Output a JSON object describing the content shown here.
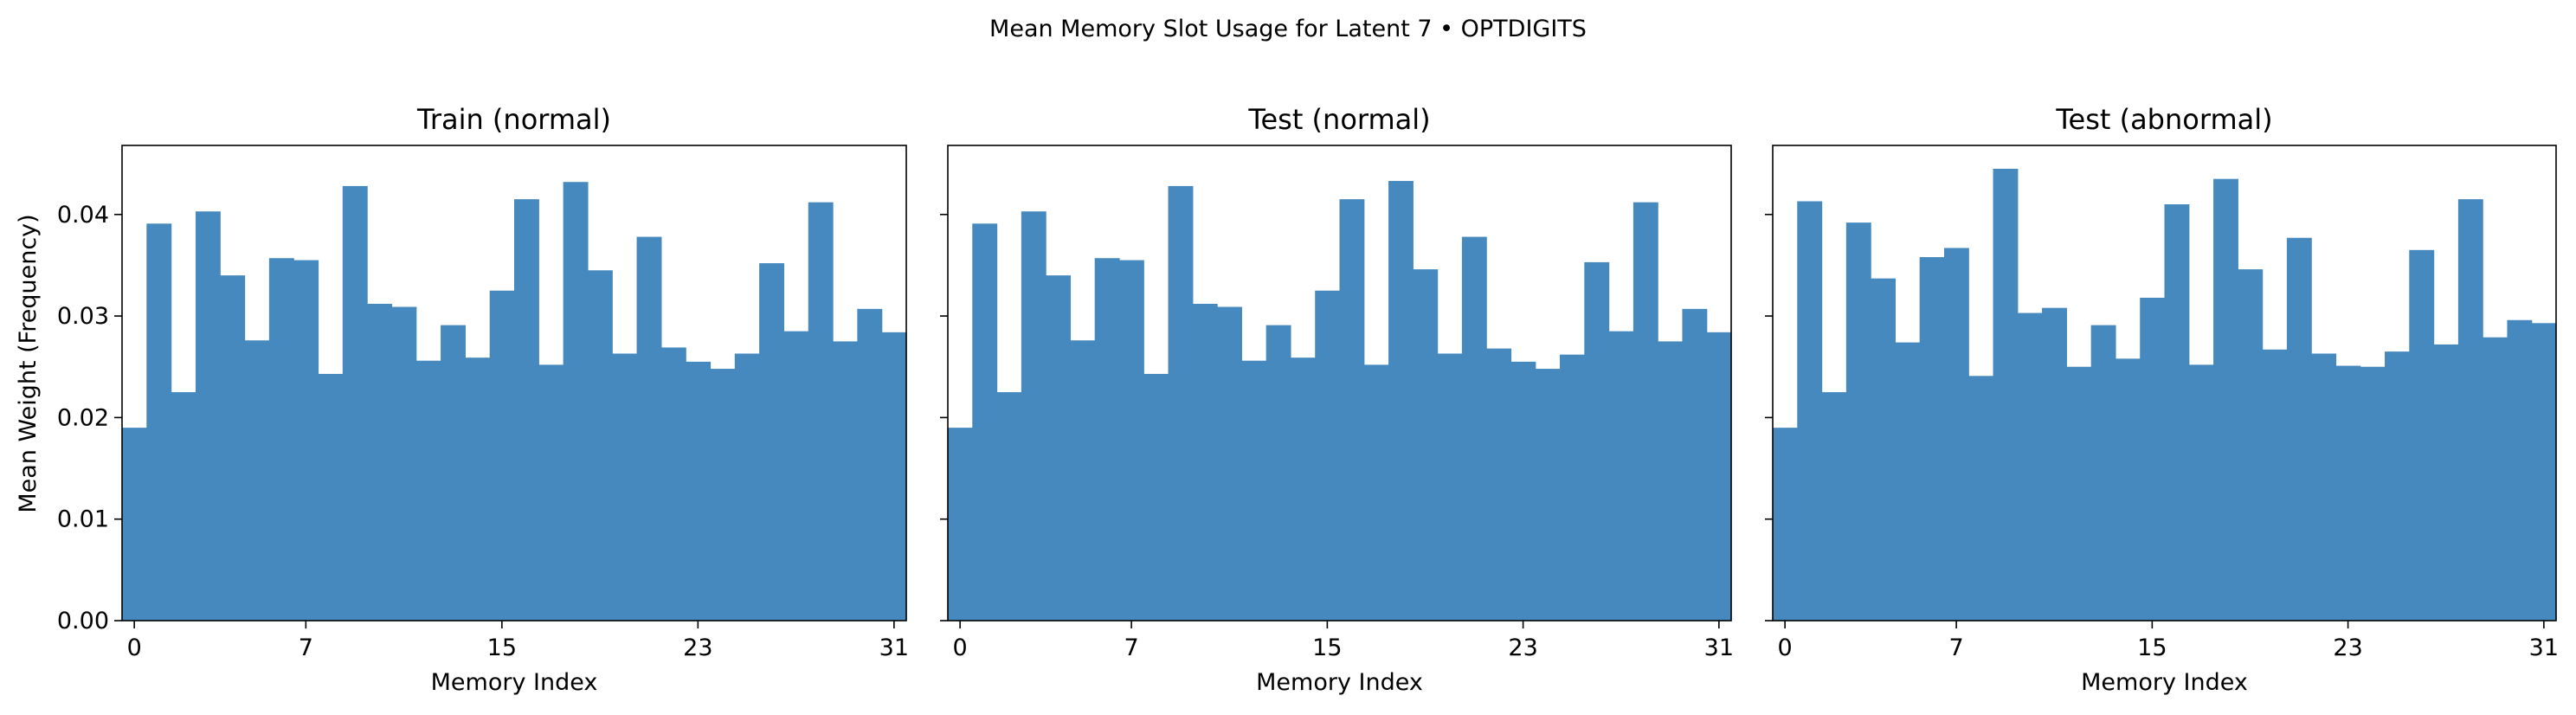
{
  "suptitle": "Mean Memory Slot Usage for Latent 7 • OPTDIGITS",
  "shared_ylabel": "Mean Weight (Frequency)",
  "colors": {
    "bar": "#4589be",
    "axis": "#000000",
    "background": "#ffffff"
  },
  "chart_data": [
    {
      "type": "bar",
      "title": "Train (normal)",
      "xlabel": "Memory Index",
      "ylabel": "Mean Weight (Frequency)",
      "x": [
        0,
        1,
        2,
        3,
        4,
        5,
        6,
        7,
        8,
        9,
        10,
        11,
        12,
        13,
        14,
        15,
        16,
        17,
        18,
        19,
        20,
        21,
        22,
        23,
        24,
        25,
        26,
        27,
        28,
        29,
        30,
        31
      ],
      "values": [
        0.019,
        0.0391,
        0.0225,
        0.0403,
        0.034,
        0.0276,
        0.0357,
        0.0355,
        0.0243,
        0.0428,
        0.0312,
        0.0309,
        0.0256,
        0.0291,
        0.0259,
        0.0325,
        0.0415,
        0.0252,
        0.0432,
        0.0345,
        0.0263,
        0.0378,
        0.0269,
        0.0255,
        0.0248,
        0.0263,
        0.0352,
        0.0285,
        0.0412,
        0.0275,
        0.0307,
        0.0284
      ],
      "xticks": [
        0,
        7,
        15,
        23,
        31
      ],
      "yticks": [
        "0.00",
        "0.01",
        "0.02",
        "0.03",
        "0.04"
      ],
      "xlim": [
        -0.5,
        31.5
      ],
      "ylim": [
        0,
        0.0468
      ],
      "grid": false
    },
    {
      "type": "bar",
      "title": "Test (normal)",
      "xlabel": "Memory Index",
      "x": [
        0,
        1,
        2,
        3,
        4,
        5,
        6,
        7,
        8,
        9,
        10,
        11,
        12,
        13,
        14,
        15,
        16,
        17,
        18,
        19,
        20,
        21,
        22,
        23,
        24,
        25,
        26,
        27,
        28,
        29,
        30,
        31
      ],
      "values": [
        0.019,
        0.0391,
        0.0225,
        0.0403,
        0.034,
        0.0276,
        0.0357,
        0.0355,
        0.0243,
        0.0428,
        0.0312,
        0.0309,
        0.0256,
        0.0291,
        0.0259,
        0.0325,
        0.0415,
        0.0252,
        0.0433,
        0.0346,
        0.0263,
        0.0378,
        0.0268,
        0.0255,
        0.0248,
        0.0262,
        0.0353,
        0.0285,
        0.0412,
        0.0275,
        0.0307,
        0.0284
      ],
      "xticks": [
        0,
        7,
        15,
        23,
        31
      ],
      "xlim": [
        -0.5,
        31.5
      ],
      "ylim": [
        0,
        0.0468
      ],
      "grid": false
    },
    {
      "type": "bar",
      "title": "Test (abnormal)",
      "xlabel": "Memory Index",
      "x": [
        0,
        1,
        2,
        3,
        4,
        5,
        6,
        7,
        8,
        9,
        10,
        11,
        12,
        13,
        14,
        15,
        16,
        17,
        18,
        19,
        20,
        21,
        22,
        23,
        24,
        25,
        26,
        27,
        28,
        29,
        30,
        31
      ],
      "values": [
        0.019,
        0.0413,
        0.0225,
        0.0392,
        0.0337,
        0.0274,
        0.0358,
        0.0367,
        0.0241,
        0.0445,
        0.0303,
        0.0308,
        0.025,
        0.0291,
        0.0258,
        0.0318,
        0.041,
        0.0252,
        0.0435,
        0.0346,
        0.0267,
        0.0377,
        0.0263,
        0.0251,
        0.025,
        0.0265,
        0.0365,
        0.0272,
        0.0415,
        0.0279,
        0.0296,
        0.0293
      ],
      "xticks": [
        0,
        7,
        15,
        23,
        31
      ],
      "xlim": [
        -0.5,
        31.5
      ],
      "ylim": [
        0,
        0.0468
      ],
      "grid": false
    }
  ]
}
